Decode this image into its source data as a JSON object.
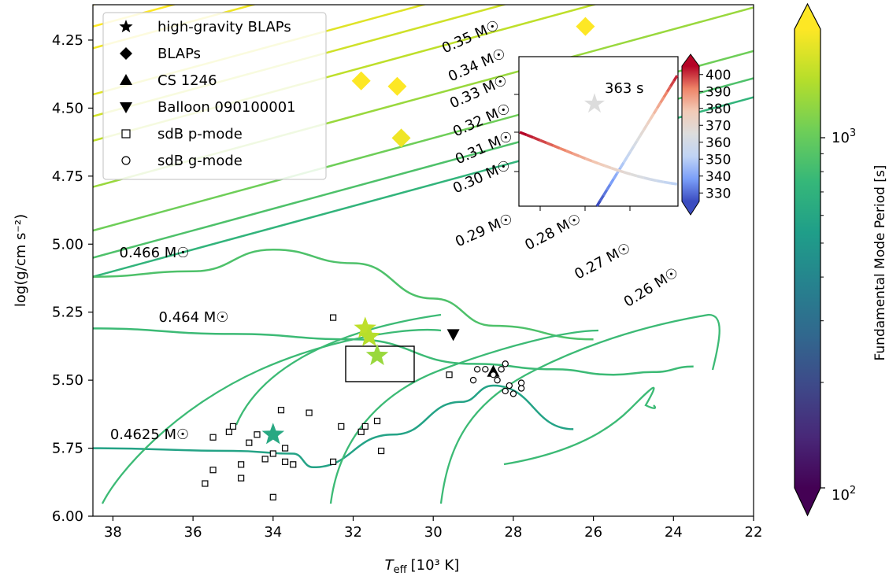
{
  "colors": {
    "cmap_viridis": [
      "#440154",
      "#482878",
      "#3e4989",
      "#31688e",
      "#26828e",
      "#1f9e89",
      "#35b779",
      "#6ece58",
      "#b5de2b",
      "#fde725"
    ],
    "cmap_inset": [
      "#3b4cc0",
      "#7b9ff9",
      "#c0d4f5",
      "#dddddd",
      "#f2cbb7",
      "#ee8468",
      "#b40426"
    ]
  },
  "chart_data": {
    "type": "scatter",
    "xlabel": "T_eff [10^3 K]",
    "ylabel": "log(g/cm s^-2)",
    "xlim": [
      38.5,
      22
    ],
    "ylim": [
      6.0,
      4.12
    ],
    "x_ticks": [
      38,
      36,
      34,
      32,
      30,
      28,
      26,
      24,
      22
    ],
    "y_ticks": [
      4.25,
      4.5,
      4.75,
      5.0,
      5.25,
      5.5,
      5.75,
      6.0
    ],
    "x_tick_labels": [
      "38",
      "36",
      "34",
      "32",
      "30",
      "28",
      "26",
      "24",
      "22"
    ],
    "y_tick_labels": [
      "4.25",
      "4.50",
      "4.75",
      "5.00",
      "5.25",
      "5.50",
      "5.75",
      "6.00"
    ],
    "legend": {
      "position": "upper-left",
      "entries": [
        {
          "label": "high-gravity BLAPs",
          "marker": "star"
        },
        {
          "label": "BLAPs",
          "marker": "diamond"
        },
        {
          "label": "CS 1246",
          "marker": "triangle-up"
        },
        {
          "label": "Balloon 090100001",
          "marker": "triangle-down"
        },
        {
          "label": "sdB p-mode",
          "marker": "square-open"
        },
        {
          "label": "sdB g-mode",
          "marker": "circle-open"
        }
      ]
    },
    "colorbar": {
      "label": "Fundamental Mode Period [s]",
      "range": [
        100,
        1000
      ],
      "scale": "log",
      "tick_labels": [
        "10^2",
        "10^3"
      ]
    },
    "tracks": [
      {
        "label": "0.35 M☉",
        "x": [
          38.5,
          22
        ],
        "y": [
          4.12,
          3.46
        ]
      },
      {
        "label": "0.34 M☉",
        "x": [
          38.5,
          22
        ],
        "y": [
          4.2,
          3.54
        ]
      },
      {
        "label": "0.33 M☉",
        "x": [
          38.5,
          22
        ],
        "y": [
          4.28,
          3.62
        ]
      },
      {
        "label": "0.32 M☉",
        "x": [
          38.5,
          22
        ],
        "y": [
          4.45,
          3.79
        ]
      },
      {
        "label": "0.31 M☉",
        "x": [
          38.5,
          22
        ],
        "y": [
          4.53,
          3.87
        ]
      },
      {
        "label": "0.30 M☉",
        "x": [
          38.5,
          22
        ],
        "y": [
          4.62,
          3.96
        ]
      },
      {
        "label": "0.29 M☉",
        "x": [
          38.5,
          22
        ],
        "y": [
          4.79,
          4.13
        ]
      },
      {
        "label": "0.28 M☉",
        "x": [
          38.5,
          22
        ],
        "y": [
          4.95,
          4.29
        ]
      },
      {
        "label": "0.27 M☉",
        "x": [
          38.5,
          22
        ],
        "y": [
          5.05,
          4.39
        ]
      },
      {
        "label": "0.26 M☉",
        "x": [
          38.5,
          22
        ],
        "y": [
          5.12,
          4.46
        ]
      },
      {
        "label": "0.466 M☉",
        "x": [
          38.5,
          36,
          34,
          32,
          30,
          28.5,
          26
        ],
        "y": [
          5.12,
          5.1,
          5.02,
          5.07,
          5.2,
          5.3,
          5.35
        ]
      },
      {
        "label": "0.464 M☉",
        "x": [
          38.5,
          35,
          32,
          29,
          27,
          25.5,
          24.5,
          23.5
        ],
        "y": [
          5.31,
          5.33,
          5.35,
          5.44,
          5.46,
          5.48,
          5.47,
          5.45
        ]
      },
      {
        "label": "0.4625 M☉",
        "x": [
          38.5,
          35,
          33.5,
          33,
          31,
          29.3,
          28.5,
          26.5
        ],
        "y": [
          5.75,
          5.76,
          5.77,
          5.82,
          5.7,
          5.58,
          5.52,
          5.68
        ]
      }
    ],
    "series": [
      {
        "name": "high-gravity BLAPs",
        "marker": "star",
        "points": [
          [
            31.7,
            5.31
          ],
          [
            31.6,
            5.34
          ],
          [
            31.4,
            5.41
          ],
          [
            34.0,
            5.7
          ]
        ],
        "periods": [
          800,
          780,
          700,
          400
        ]
      },
      {
        "name": "BLAPs",
        "marker": "diamond",
        "points": [
          [
            31.8,
            4.4
          ],
          [
            30.9,
            4.42
          ],
          [
            30.8,
            4.61
          ],
          [
            26.2,
            4.2
          ]
        ],
        "periods": [
          1000,
          1000,
          950,
          1000
        ]
      },
      {
        "name": "CS 1246",
        "marker": "triangle-up",
        "points": [
          [
            28.5,
            5.47
          ]
        ]
      },
      {
        "name": "Balloon 090100001",
        "marker": "triangle-down",
        "points": [
          [
            29.5,
            5.33
          ]
        ]
      },
      {
        "name": "sdB p-mode",
        "marker": "square-open",
        "points": [
          [
            35.7,
            5.88
          ],
          [
            35.5,
            5.71
          ],
          [
            35.5,
            5.83
          ],
          [
            35.1,
            5.69
          ],
          [
            35.0,
            5.67
          ],
          [
            34.6,
            5.73
          ],
          [
            34.8,
            5.81
          ],
          [
            34.8,
            5.86
          ],
          [
            34.4,
            5.7
          ],
          [
            34.2,
            5.79
          ],
          [
            34.0,
            5.77
          ],
          [
            33.8,
            5.61
          ],
          [
            33.7,
            5.8
          ],
          [
            33.7,
            5.75
          ],
          [
            33.5,
            5.81
          ],
          [
            34.0,
            5.93
          ],
          [
            33.1,
            5.62
          ],
          [
            32.5,
            5.27
          ],
          [
            32.3,
            5.67
          ],
          [
            32.5,
            5.8
          ],
          [
            31.8,
            5.69
          ],
          [
            31.7,
            5.67
          ],
          [
            31.4,
            5.65
          ],
          [
            31.3,
            5.76
          ],
          [
            29.6,
            5.48
          ]
        ]
      },
      {
        "name": "sdB g-mode",
        "marker": "circle-open",
        "points": [
          [
            29.0,
            5.5
          ],
          [
            28.9,
            5.46
          ],
          [
            28.7,
            5.46
          ],
          [
            28.5,
            5.48
          ],
          [
            28.4,
            5.5
          ],
          [
            28.3,
            5.46
          ],
          [
            28.2,
            5.54
          ],
          [
            28.1,
            5.52
          ],
          [
            28.2,
            5.44
          ],
          [
            28.0,
            5.55
          ],
          [
            27.8,
            5.51
          ],
          [
            27.8,
            5.53
          ]
        ]
      }
    ],
    "highlight_box": {
      "x": [
        32.2,
        30.5
      ],
      "y": [
        5.37,
        5.5
      ]
    },
    "inset": {
      "annotation": "363 s",
      "star_period": 363,
      "colorbar": {
        "range": [
          325,
          405
        ],
        "ticks": [
          330,
          340,
          350,
          360,
          370,
          380,
          390,
          400
        ],
        "tick_labels": [
          "330",
          "340",
          "350",
          "360",
          "370",
          "380",
          "390",
          "400"
        ]
      }
    }
  },
  "texts": {
    "xlabel_main": "T",
    "xlabel_sub": "eff",
    "xlabel_units": "[10³ K]",
    "ylabel": "log(g/cm s⁻²)",
    "colorbar_label": "Fundamental Mode Period [s]",
    "cbar_tick_low": "10",
    "cbar_tick_low_exp": "2",
    "cbar_tick_high": "10",
    "cbar_tick_high_exp": "3",
    "inset_annotation": "363 s",
    "legend": [
      "high-gravity BLAPs",
      "BLAPs",
      "CS 1246",
      "Balloon 090100001",
      "sdB p-mode",
      "sdB g-mode"
    ]
  }
}
